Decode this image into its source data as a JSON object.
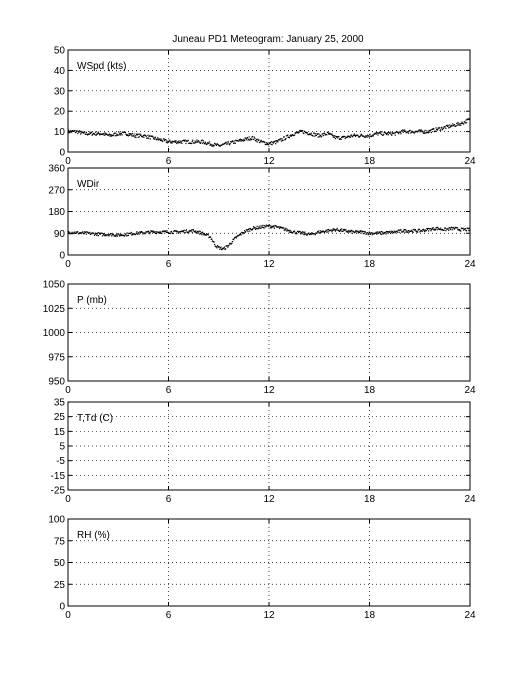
{
  "title": "Juneau PD1 Meteogram:   January 25, 2000",
  "chart_data": [
    {
      "type": "scatter",
      "label": "WSpd (kts)",
      "xlim": [
        0,
        24
      ],
      "ylim": [
        0,
        50
      ],
      "xticks": [
        0,
        6,
        12,
        18,
        24
      ],
      "yticks": [
        0,
        10,
        20,
        30,
        40,
        50
      ],
      "grid": true,
      "series": [
        {
          "x": [
            0,
            0.5,
            1,
            1.5,
            2,
            2.5,
            3,
            3.5,
            4,
            4.5,
            5,
            5.5,
            6,
            6.5,
            7,
            7.5,
            8,
            8.5,
            9,
            9.5,
            10,
            10.5,
            11,
            11.5,
            12,
            12.5,
            13,
            13.5,
            14,
            14.5,
            15,
            15.5,
            16,
            16.5,
            17,
            17.5,
            18,
            18.5,
            19,
            19.5,
            20,
            20.5,
            21,
            21.5,
            22,
            22.5,
            23,
            23.5,
            24
          ],
          "y": [
            10,
            10,
            9,
            9,
            9,
            8,
            9,
            9,
            8,
            8,
            7,
            6,
            5,
            5,
            5,
            5,
            5,
            4,
            3,
            4,
            5,
            6,
            7,
            5,
            4,
            5,
            7,
            9,
            10,
            9,
            8,
            9,
            7,
            7,
            8,
            8,
            8,
            9,
            9,
            9,
            10,
            10,
            10,
            10,
            11,
            12,
            13,
            14,
            16
          ]
        }
      ]
    },
    {
      "type": "scatter",
      "label": "WDir",
      "xlim": [
        0,
        24
      ],
      "ylim": [
        0,
        360
      ],
      "xticks": [
        0,
        6,
        12,
        18,
        24
      ],
      "yticks": [
        0,
        90,
        180,
        270,
        360
      ],
      "grid": true,
      "series": [
        {
          "x": [
            0,
            0.5,
            1,
            1.5,
            2,
            2.5,
            3,
            3.5,
            4,
            4.5,
            5,
            5.5,
            6,
            6.5,
            7,
            7.5,
            8,
            8.5,
            8.8,
            9,
            9.3,
            9.6,
            10,
            10.5,
            11,
            11.5,
            12,
            12.5,
            13,
            13.5,
            14,
            14.5,
            15,
            15.5,
            16,
            16.5,
            17,
            17.5,
            18,
            18.5,
            19,
            19.5,
            20,
            20.5,
            21,
            21.5,
            22,
            22.5,
            23,
            23.5,
            24
          ],
          "y": [
            95,
            92,
            90,
            88,
            85,
            85,
            82,
            85,
            90,
            92,
            95,
            95,
            95,
            95,
            98,
            100,
            90,
            75,
            40,
            30,
            25,
            40,
            70,
            95,
            110,
            115,
            120,
            115,
            105,
            95,
            90,
            85,
            95,
            100,
            105,
            100,
            95,
            95,
            90,
            90,
            92,
            95,
            100,
            100,
            100,
            105,
            110,
            105,
            110,
            105,
            105
          ]
        }
      ]
    },
    {
      "type": "scatter",
      "label": "P (mb)",
      "xlim": [
        0,
        24
      ],
      "ylim": [
        950,
        1050
      ],
      "xticks": [
        0,
        6,
        12,
        18,
        24
      ],
      "yticks": [
        950,
        975,
        1000,
        1025,
        1050
      ],
      "grid": true,
      "series": []
    },
    {
      "type": "scatter",
      "label": "T,Td (C)",
      "xlim": [
        0,
        24
      ],
      "ylim": [
        -25,
        35
      ],
      "xticks": [
        0,
        6,
        12,
        18,
        24
      ],
      "yticks": [
        -25,
        -15,
        -5,
        5,
        15,
        25,
        35
      ],
      "grid": true,
      "series": []
    },
    {
      "type": "scatter",
      "label": "RH (%)",
      "xlim": [
        0,
        24
      ],
      "ylim": [
        0,
        100
      ],
      "xticks": [
        0,
        6,
        12,
        18,
        24
      ],
      "yticks": [
        0,
        25,
        50,
        75,
        100
      ],
      "grid": true,
      "series": []
    }
  ]
}
